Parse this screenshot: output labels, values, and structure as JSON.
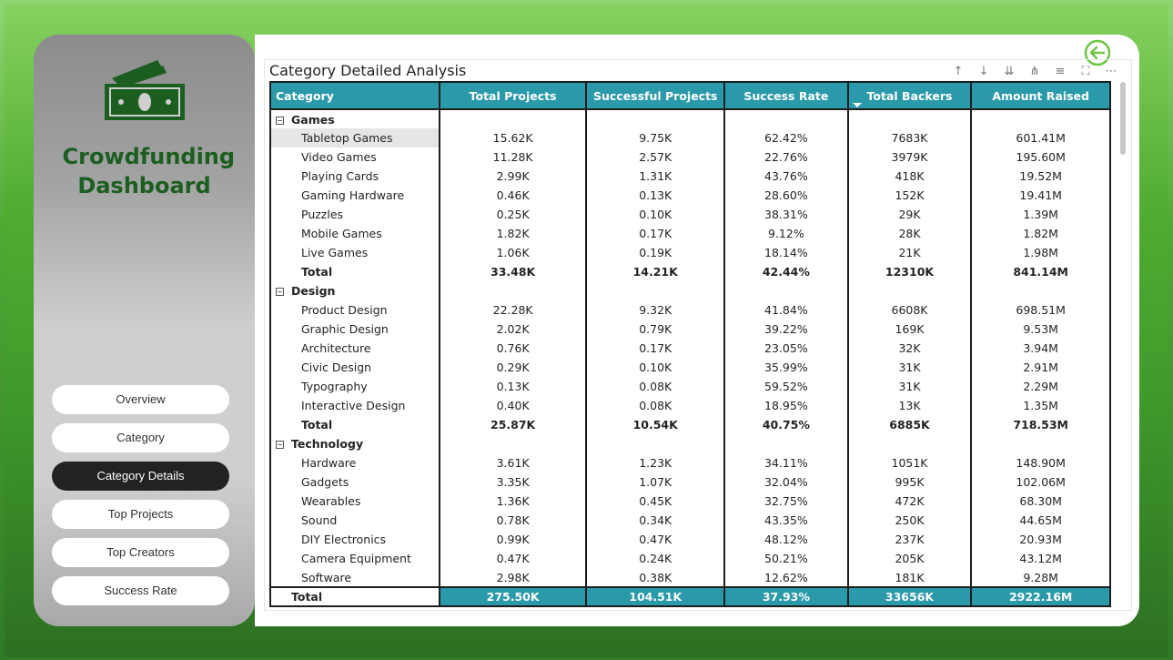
{
  "sidebar": {
    "title": "Crowdfunding Dashboard",
    "logo_icon": "money-icon",
    "nav": [
      {
        "label": "Overview",
        "active": false
      },
      {
        "label": "Category",
        "active": false
      },
      {
        "label": "Category Details",
        "active": true
      },
      {
        "label": "Top Projects",
        "active": false
      },
      {
        "label": "Top Creators",
        "active": false
      },
      {
        "label": "Success Rate",
        "active": false
      }
    ]
  },
  "visual": {
    "title": "Category Detailed Analysis",
    "toolbar_icons": [
      "arrow-up-icon",
      "arrow-down-icon",
      "expand-all-icon",
      "expand-icon",
      "filter-icon",
      "focus-mode-icon",
      "more-options-icon"
    ],
    "columns": [
      "Category",
      "Total Projects",
      "Successful Projects",
      "Success Rate",
      "Total Backers",
      "Amount Raised"
    ],
    "sorted_column": "Total Backers",
    "groups": [
      {
        "name": "Games",
        "rows": [
          [
            "Tabletop Games",
            "15.62K",
            "9.75K",
            "62.42%",
            "7683K",
            "601.41M"
          ],
          [
            "Video Games",
            "11.28K",
            "2.57K",
            "22.76%",
            "3979K",
            "195.60M"
          ],
          [
            "Playing Cards",
            "2.99K",
            "1.31K",
            "43.76%",
            "418K",
            "19.52M"
          ],
          [
            "Gaming Hardware",
            "0.46K",
            "0.13K",
            "28.60%",
            "152K",
            "19.41M"
          ],
          [
            "Puzzles",
            "0.25K",
            "0.10K",
            "38.31%",
            "29K",
            "1.39M"
          ],
          [
            "Mobile Games",
            "1.82K",
            "0.17K",
            "9.12%",
            "28K",
            "1.82M"
          ],
          [
            "Live Games",
            "1.06K",
            "0.19K",
            "18.14%",
            "21K",
            "1.98M"
          ]
        ],
        "total": [
          "Total",
          "33.48K",
          "14.21K",
          "42.44%",
          "12310K",
          "841.14M"
        ]
      },
      {
        "name": "Design",
        "rows": [
          [
            "Product Design",
            "22.28K",
            "9.32K",
            "41.84%",
            "6608K",
            "698.51M"
          ],
          [
            "Graphic Design",
            "2.02K",
            "0.79K",
            "39.22%",
            "169K",
            "9.53M"
          ],
          [
            "Architecture",
            "0.76K",
            "0.17K",
            "23.05%",
            "32K",
            "3.94M"
          ],
          [
            "Civic Design",
            "0.29K",
            "0.10K",
            "35.99%",
            "31K",
            "2.91M"
          ],
          [
            "Typography",
            "0.13K",
            "0.08K",
            "59.52%",
            "31K",
            "2.29M"
          ],
          [
            "Interactive Design",
            "0.40K",
            "0.08K",
            "18.95%",
            "13K",
            "1.35M"
          ]
        ],
        "total": [
          "Total",
          "25.87K",
          "10.54K",
          "40.75%",
          "6885K",
          "718.53M"
        ]
      },
      {
        "name": "Technology",
        "rows": [
          [
            "Hardware",
            "3.61K",
            "1.23K",
            "34.11%",
            "1051K",
            "148.90M"
          ],
          [
            "Gadgets",
            "3.35K",
            "1.07K",
            "32.04%",
            "995K",
            "102.06M"
          ],
          [
            "Wearables",
            "1.36K",
            "0.45K",
            "32.75%",
            "472K",
            "68.30M"
          ],
          [
            "Sound",
            "0.78K",
            "0.34K",
            "43.35%",
            "250K",
            "44.65M"
          ],
          [
            "DIY Electronics",
            "0.99K",
            "0.47K",
            "48.12%",
            "237K",
            "20.93M"
          ],
          [
            "Camera Equipment",
            "0.47K",
            "0.24K",
            "50.21%",
            "205K",
            "43.12M"
          ],
          [
            "Software",
            "2.98K",
            "0.38K",
            "12.62%",
            "181K",
            "9.28M"
          ]
        ]
      }
    ],
    "grand_total": [
      "Total",
      "275.50K",
      "104.51K",
      "37.93%",
      "33656K",
      "2922.16M"
    ]
  },
  "colors": {
    "header_bg": "#2a9aab",
    "title_green": "#1b5e20",
    "active_nav": "#222222",
    "back_icon": "#6cc644"
  }
}
